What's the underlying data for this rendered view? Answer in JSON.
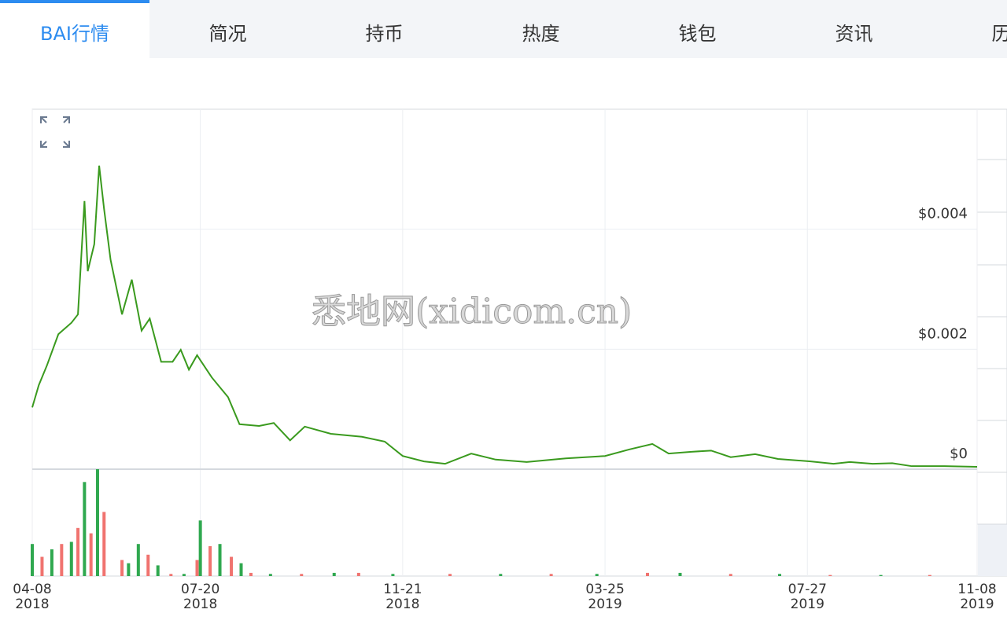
{
  "tabs": [
    "BAI行情",
    "简况",
    "持币",
    "热度",
    "钱包",
    "资讯",
    "历史"
  ],
  "watermark": "悉地网(xidicom.cn)",
  "chart_data": [
    {
      "type": "line",
      "x": [
        "2018-04-08",
        "2018-04-12",
        "2018-04-17",
        "2018-04-24",
        "2018-05-02",
        "2018-05-06",
        "2018-05-10",
        "2018-05-12",
        "2018-05-16",
        "2018-05-19",
        "2018-05-22",
        "2018-05-26",
        "2018-06-02",
        "2018-06-08",
        "2018-06-14",
        "2018-06-19",
        "2018-06-26",
        "2018-07-03",
        "2018-07-08",
        "2018-07-13",
        "2018-07-18",
        "2018-07-27",
        "2018-08-06",
        "2018-08-13",
        "2018-08-25",
        "2018-09-03",
        "2018-09-13",
        "2018-09-22",
        "2018-10-08",
        "2018-10-27",
        "2018-11-10",
        "2018-11-21",
        "2018-12-04",
        "2018-12-17",
        "2019-01-02",
        "2019-01-17",
        "2019-02-05",
        "2019-03-01",
        "2019-03-25",
        "2019-04-09",
        "2019-04-23",
        "2019-05-03",
        "2019-05-17",
        "2019-05-29",
        "2019-06-10",
        "2019-06-25",
        "2019-07-09",
        "2019-07-29",
        "2019-08-12",
        "2019-08-22",
        "2019-09-05",
        "2019-09-17",
        "2019-09-29",
        "2019-10-19",
        "2019-11-08"
      ],
      "series": [
        {
          "name": "BAI",
          "color": "#3a9a1e",
          "values": [
            0.00103,
            0.0014,
            0.00173,
            0.00225,
            0.00244,
            0.00258,
            0.00447,
            0.0033,
            0.00375,
            0.00506,
            0.00434,
            0.00349,
            0.00258,
            0.00316,
            0.00231,
            0.00251,
            0.00179,
            0.00179,
            0.00199,
            0.00166,
            0.0019,
            0.00153,
            0.0012,
            0.00075,
            0.00072,
            0.00077,
            0.00048,
            0.00071,
            0.00059,
            0.00054,
            0.00046,
            0.00022,
            0.00013,
            9e-05,
            0.00026,
            0.00016,
            0.00012,
            0.00018,
            0.00022,
            0.00033,
            0.00042,
            0.00026,
            0.00029,
            0.00031,
            0.0002,
            0.00025,
            0.00017,
            0.00013,
            9e-05,
            0.00012,
            9e-05,
            0.0001,
            5e-05,
            5e-05,
            4e-05
          ]
        }
      ],
      "xlim": [
        "2018-04-08",
        "2019-11-08"
      ],
      "xticks": [
        {
          "value": "2018-04-08",
          "label": "04-08\n2018"
        },
        {
          "value": "2018-07-20",
          "label": "07-20\n2018"
        },
        {
          "value": "2018-11-21",
          "label": "11-21\n2018"
        },
        {
          "value": "2019-03-25",
          "label": "03-25\n2019"
        },
        {
          "value": "2019-07-27",
          "label": "07-27\n2019"
        },
        {
          "value": "2019-11-08",
          "label": "11-08\n2019"
        }
      ],
      "ylim": [
        0,
        0.006
      ],
      "yticks": [
        {
          "value": 0,
          "label": "$0"
        },
        {
          "value": 0.002,
          "label": "$0.002"
        },
        {
          "value": 0.004,
          "label": "$0.004"
        }
      ],
      "grid": true
    },
    {
      "type": "bar",
      "x": [
        "2018-04-08",
        "2018-04-14",
        "2018-04-20",
        "2018-04-26",
        "2018-05-02",
        "2018-05-06",
        "2018-05-10",
        "2018-05-14",
        "2018-05-18",
        "2018-05-22",
        "2018-06-02",
        "2018-06-06",
        "2018-06-12",
        "2018-06-18",
        "2018-06-24",
        "2018-07-02",
        "2018-07-10",
        "2018-07-18",
        "2018-07-20",
        "2018-07-26",
        "2018-08-01",
        "2018-08-08",
        "2018-08-14",
        "2018-08-20",
        "2018-09-01",
        "2018-09-20",
        "2018-10-10",
        "2018-10-25",
        "2018-11-15",
        "2018-12-20",
        "2019-01-20",
        "2019-02-20",
        "2019-03-20",
        "2019-04-20",
        "2019-05-10",
        "2019-06-10",
        "2019-07-10",
        "2019-08-10",
        "2019-09-10",
        "2019-10-10"
      ],
      "values": [
        30,
        18,
        25,
        30,
        32,
        45,
        88,
        40,
        100,
        60,
        15,
        12,
        30,
        20,
        10,
        2,
        2,
        15,
        52,
        28,
        30,
        18,
        12,
        3,
        2,
        2,
        3,
        3,
        2,
        2,
        2,
        2,
        2,
        3,
        3,
        2,
        2,
        1,
        1,
        1
      ],
      "colors": [
        "#2fa84f",
        "#f0736f",
        "#2fa84f",
        "#f0736f",
        "#2fa84f",
        "#f0736f",
        "#2fa84f",
        "#f0736f",
        "#2fa84f",
        "#f0736f",
        "#f0736f",
        "#2fa84f",
        "#2fa84f",
        "#f0736f",
        "#2fa84f",
        "#f0736f",
        "#2fa84f",
        "#f0736f",
        "#2fa84f",
        "#f0736f",
        "#2fa84f",
        "#f0736f",
        "#2fa84f",
        "#f0736f",
        "#2fa84f",
        "#f0736f",
        "#2fa84f",
        "#f0736f",
        "#2fa84f",
        "#f0736f",
        "#2fa84f",
        "#f0736f",
        "#2fa84f",
        "#f0736f",
        "#2fa84f",
        "#f0736f",
        "#2fa84f",
        "#f0736f",
        "#2fa84f",
        "#f0736f"
      ],
      "ylim": [
        0,
        100
      ]
    }
  ]
}
